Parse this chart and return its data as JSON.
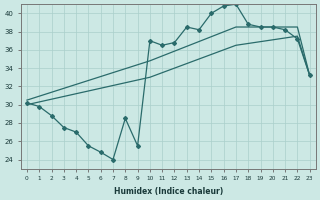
{
  "xlabel": "Humidex (Indice chaleur)",
  "ylabel": "",
  "xlim": [
    -0.5,
    23.5
  ],
  "ylim": [
    23,
    41
  ],
  "yticks": [
    24,
    26,
    28,
    30,
    32,
    34,
    36,
    38,
    40
  ],
  "xticks": [
    0,
    1,
    2,
    3,
    4,
    5,
    6,
    7,
    8,
    9,
    10,
    11,
    12,
    13,
    14,
    15,
    16,
    17,
    18,
    19,
    20,
    21,
    22,
    23
  ],
  "bg_color": "#cce8e4",
  "grid_color": "#aacfcb",
  "line_color": "#2a6b6b",
  "line1_x": [
    0,
    1,
    2,
    3,
    4,
    5,
    6,
    7,
    8,
    9,
    10,
    11,
    12,
    13,
    14,
    15,
    16,
    17,
    18,
    19,
    20,
    21,
    22,
    23
  ],
  "line1_y": [
    30.2,
    29.8,
    28.8,
    27.5,
    27.0,
    25.5,
    24.8,
    24.0,
    28.5,
    25.5,
    37.0,
    36.5,
    36.8,
    38.5,
    38.2,
    40.0,
    40.8,
    41.0,
    38.8,
    38.5,
    38.5,
    38.2,
    37.2,
    33.2
  ],
  "line2_x": [
    0,
    10,
    17,
    22,
    23
  ],
  "line2_y": [
    30.5,
    34.8,
    38.5,
    38.5,
    33.2
  ],
  "line3_x": [
    0,
    10,
    17,
    22,
    23
  ],
  "line3_y": [
    30.0,
    33.0,
    36.5,
    37.5,
    33.2
  ]
}
